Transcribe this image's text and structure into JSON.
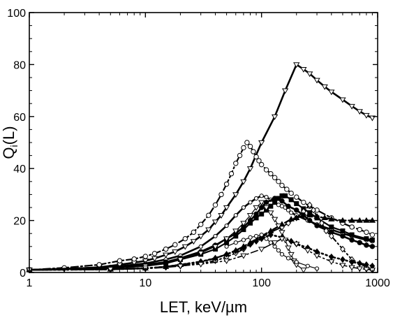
{
  "chart_data": {
    "type": "line",
    "xlabel": "LET, keV/µm",
    "ylabel": {
      "main": "Q",
      "sub": "i",
      "suffix": "(L)"
    },
    "xscale": "log",
    "xlim": [
      1,
      1000
    ],
    "ylim": [
      0,
      100
    ],
    "xticks": [
      "1",
      "10",
      "100",
      "1000"
    ],
    "yticks": [
      "0",
      "20",
      "40",
      "60",
      "80",
      "100"
    ],
    "grid": false,
    "legend": "none",
    "series": [
      {
        "marker": "triangle-down-open",
        "dash": "solid",
        "width": 2.6,
        "x": [
          1,
          2,
          4,
          6,
          8,
          10,
          12,
          15,
          18,
          22,
          26,
          30,
          35,
          40,
          45,
          50,
          60,
          70,
          80,
          100,
          130,
          160,
          200,
          230,
          260,
          300,
          350,
          400,
          500,
          600,
          700,
          800,
          900
        ],
        "y": [
          1,
          1.3,
          2,
          3,
          3.8,
          4.5,
          5.4,
          6.8,
          8,
          10,
          12,
          14,
          16.5,
          19.5,
          22,
          25,
          30,
          35,
          40,
          50,
          60,
          70,
          80,
          78.2,
          76.5,
          74,
          71.5,
          69.5,
          66.5,
          64,
          62,
          60.5,
          59.5
        ]
      },
      {
        "marker": "circle-open",
        "dash": "dashdot",
        "width": 2.2,
        "x": [
          1,
          2,
          4,
          6,
          8,
          10,
          12,
          15,
          18,
          22,
          26,
          30,
          35,
          40,
          45,
          50,
          55,
          60,
          65,
          70,
          75,
          80,
          85,
          90,
          95,
          100,
          110,
          120,
          130,
          140,
          150,
          165,
          180,
          200,
          230,
          260,
          300,
          400,
          500,
          600,
          700,
          800,
          900
        ],
        "y": [
          1,
          1.8,
          3,
          4.5,
          5.2,
          6.2,
          7.3,
          9,
          10.7,
          13,
          15.5,
          18.5,
          22,
          26,
          30,
          34,
          38,
          42,
          45,
          48,
          50,
          48.5,
          46.5,
          44.5,
          43,
          41.5,
          39.5,
          38,
          36.5,
          35,
          33.5,
          32,
          30.5,
          29,
          27,
          25.5,
          24,
          21,
          19,
          17.5,
          16.5,
          15.5,
          14.5
        ]
      },
      {
        "marker": "circle-open-small",
        "dash": "solid",
        "width": 2.6,
        "x": [
          1,
          5,
          10,
          15,
          20,
          30,
          40,
          50,
          60,
          70,
          80,
          90,
          100,
          110,
          120,
          130,
          140,
          150,
          160,
          170,
          180,
          200,
          250,
          300,
          400,
          500,
          600,
          800,
          900
        ],
        "y": [
          1,
          2,
          3.5,
          5,
          6.5,
          10,
          14,
          18,
          22,
          25,
          27,
          28.5,
          29.5,
          29,
          28,
          27,
          26,
          25.5,
          25,
          24,
          23,
          22,
          20,
          18.5,
          16.5,
          15,
          14,
          12.5,
          12
        ]
      },
      {
        "marker": "square-filled",
        "dash": "solid",
        "width": 2.2,
        "x": [
          1,
          5,
          10,
          15,
          20,
          30,
          40,
          50,
          60,
          70,
          80,
          90,
          100,
          110,
          120,
          130,
          140,
          150,
          160,
          180,
          200,
          230,
          260,
          300,
          400,
          500,
          600,
          800,
          900
        ],
        "y": [
          1,
          1.6,
          2.5,
          3.5,
          5,
          7,
          9,
          11.5,
          14,
          16.5,
          19,
          21,
          22.5,
          24,
          25.5,
          27,
          28.5,
          29.5,
          29.5,
          28,
          26.5,
          24.5,
          23,
          21,
          17.5,
          16,
          14.5,
          13,
          12.5
        ]
      },
      {
        "marker": "circle-filled",
        "dash": "solid",
        "width": 2.6,
        "x": [
          1,
          5,
          10,
          15,
          20,
          30,
          40,
          50,
          60,
          70,
          80,
          90,
          100,
          110,
          130,
          150,
          170,
          200,
          230,
          260,
          300,
          400,
          500,
          600,
          700,
          800,
          900
        ],
        "y": [
          1,
          2,
          3,
          4,
          5.5,
          8,
          10.5,
          13,
          15,
          17.5,
          20,
          22.5,
          25,
          27,
          28.5,
          27.5,
          25.5,
          24,
          22,
          20,
          18,
          15.5,
          14,
          12.5,
          11.5,
          10.5,
          10
        ]
      },
      {
        "marker": "diamond-open",
        "dash": "dashdot",
        "width": 2.0,
        "x": [
          1,
          5,
          10,
          15,
          20,
          30,
          40,
          50,
          60,
          70,
          80,
          100,
          120,
          150,
          170,
          200,
          230,
          260,
          280,
          300,
          330,
          360,
          400,
          500,
          600,
          700,
          800,
          900
        ],
        "y": [
          1,
          1.2,
          1.5,
          2,
          2.5,
          3.5,
          4.5,
          6,
          7.5,
          9,
          11,
          13.5,
          15.5,
          17.5,
          19,
          21,
          23.5,
          26,
          24,
          21.5,
          19,
          16,
          14,
          9,
          5,
          3.5,
          2,
          1
        ]
      },
      {
        "marker": "triangle-up-filled",
        "dash": "dashdot",
        "width": 2.4,
        "x": [
          1,
          5,
          10,
          15,
          20,
          30,
          40,
          50,
          60,
          70,
          80,
          100,
          120,
          150,
          180,
          200,
          230,
          260,
          300,
          350,
          400,
          500,
          600,
          700,
          800,
          900
        ],
        "y": [
          1,
          1.2,
          1.6,
          2.2,
          3,
          4,
          5.5,
          7,
          8.5,
          10,
          11.5,
          14,
          16,
          18.5,
          20.5,
          21,
          22,
          22,
          21.5,
          21,
          20.5,
          20,
          20,
          20,
          20,
          20
        ]
      },
      {
        "marker": "diamond-filled",
        "dash": "dotted",
        "width": 2.6,
        "x": [
          1,
          5,
          10,
          15,
          20,
          30,
          40,
          50,
          60,
          70,
          80,
          90,
          100,
          120,
          150,
          180,
          200,
          250,
          300,
          400,
          500,
          600,
          700,
          800,
          900
        ],
        "y": [
          1,
          1.2,
          1.6,
          2.2,
          3,
          4.2,
          5.5,
          7,
          8.3,
          9.5,
          10.8,
          12,
          13,
          14.5,
          13.5,
          12,
          11,
          9.5,
          8,
          6,
          5,
          4,
          3.5,
          3,
          2.5
        ]
      },
      {
        "marker": "triangle-down-open",
        "dash": "solid",
        "width": 1.2,
        "x": [
          1,
          5,
          10,
          20,
          30,
          40,
          50,
          60,
          70,
          80,
          90,
          100,
          110,
          120,
          130,
          140,
          150,
          160,
          170,
          180,
          190,
          200,
          230
        ],
        "y": [
          1,
          1.5,
          2.5,
          5,
          7.5,
          10,
          13,
          16,
          19,
          22,
          25,
          27,
          25,
          23,
          20.5,
          18,
          15.5,
          12.5,
          9.5,
          7,
          4.5,
          3,
          1
        ]
      },
      {
        "marker": "circle-open-small",
        "dash": "solid",
        "width": 1.2,
        "x": [
          50,
          60,
          70,
          80,
          90,
          100,
          110,
          120,
          130,
          140,
          150,
          170,
          200,
          250,
          300
        ],
        "y": [
          10,
          11.5,
          12.5,
          13.5,
          14,
          14.5,
          13,
          11.5,
          10,
          8.5,
          7,
          5.5,
          4,
          2.5,
          1.5
        ]
      },
      {
        "marker": "triangle-down-open",
        "dash": "dashdot",
        "width": 1.6,
        "x": [
          1,
          5,
          10,
          20,
          30,
          50,
          70,
          100,
          130,
          150,
          200,
          250,
          300,
          400,
          500,
          600,
          700,
          800,
          900
        ],
        "y": [
          1,
          1.3,
          1.8,
          2.5,
          3.2,
          4.5,
          6.5,
          9,
          11.5,
          13,
          11,
          8.5,
          6.5,
          4.2,
          2.8,
          2,
          1.5,
          1.2,
          1
        ]
      }
    ]
  }
}
